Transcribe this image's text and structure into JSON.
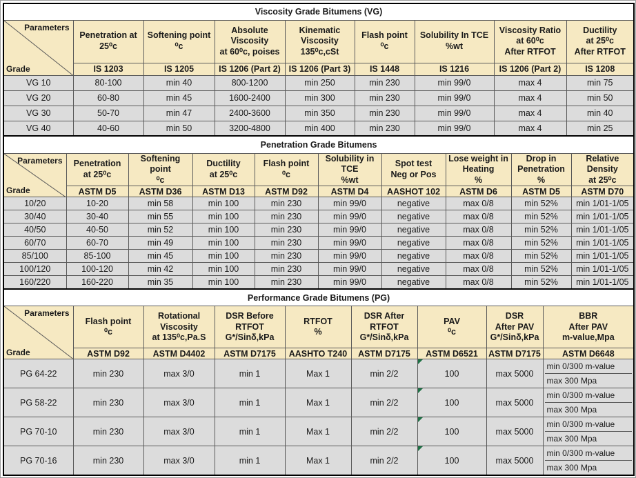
{
  "colors": {
    "header_bg": "#f6e9c2",
    "row_bg": "#dcdcdc",
    "border": "#595959",
    "outer_border": "#000000",
    "flag_green": "#1e7145"
  },
  "tables": [
    {
      "id": "vg",
      "title": "Viscosity Grade Bitumens (VG)",
      "corner": {
        "top_label": "Parameters",
        "bottom_label": "Grade"
      },
      "columns": [
        {
          "label": "Penetration at\n25⁰c",
          "code": "IS 1203"
        },
        {
          "label": "Softening point\n⁰c",
          "code": "IS 1205"
        },
        {
          "label": "Absolute\nViscosity\nat 60⁰c, poises",
          "code": "IS 1206 (Part 2)"
        },
        {
          "label": "Kinematic\nViscosity\n135⁰c,cSt",
          "code": "IS 1206 (Part 3)"
        },
        {
          "label": "Flash point\n⁰c",
          "code": "IS 1448"
        },
        {
          "label": "Solubility In TCE\n%wt",
          "code": "IS 1216"
        },
        {
          "label": "Viscosity Ratio\nat 60⁰c\nAfter RTFOT",
          "code": "IS 1206 (Part 2)"
        },
        {
          "label": "Ductility\nat 25⁰c\nAfter RTFOT",
          "code": "IS 1208"
        }
      ],
      "rows": [
        {
          "grade": "VG 10",
          "values": [
            "80-100",
            "min 40",
            "800-1200",
            "min 250",
            "min 230",
            "min 99/0",
            "max 4",
            "min 75"
          ]
        },
        {
          "grade": "VG 20",
          "values": [
            "60-80",
            "min 45",
            "1600-2400",
            "min 300",
            "min 230",
            "min 99/0",
            "max 4",
            "min 50"
          ]
        },
        {
          "grade": "VG 30",
          "values": [
            "50-70",
            "min 47",
            "2400-3600",
            "min 350",
            "min 230",
            "min 99/0",
            "max 4",
            "min 40"
          ]
        },
        {
          "grade": "VG 40",
          "values": [
            "40-60",
            "min 50",
            "3200-4800",
            "min 400",
            "min 230",
            "min 99/0",
            "max 4",
            "min 25"
          ]
        }
      ]
    },
    {
      "id": "pen",
      "title": "Penetration Grade Bitumens",
      "corner": {
        "top_label": "Parameters",
        "bottom_label": "Grade"
      },
      "columns": [
        {
          "label": "Penetration\nat 25⁰c",
          "code": "ASTM D5"
        },
        {
          "label": "Softening point\n⁰c",
          "code": "ASTM D36"
        },
        {
          "label": "Ductility\nat 25⁰c",
          "code": "ASTM D13"
        },
        {
          "label": "Flash point\n⁰c",
          "code": "ASTM D92"
        },
        {
          "label": "Solubility in TCE\n%wt",
          "code": "ASTM D4"
        },
        {
          "label": "Spot test\nNeg or Pos",
          "code": "AASHOT 102"
        },
        {
          "label": "Lose weight in\nHeating\n%",
          "code": "ASTM D6"
        },
        {
          "label": "Drop in\nPenetration\n%",
          "code": "ASTM D5"
        },
        {
          "label": "Relative Density\nat 25⁰c",
          "code": "ASTM D70"
        }
      ],
      "rows": [
        {
          "grade": "10/20",
          "values": [
            "10-20",
            "min 58",
            "min 100",
            "min 230",
            "min 99/0",
            "negative",
            "max 0/8",
            "min 52%",
            "min 1/01-1/05"
          ]
        },
        {
          "grade": "30/40",
          "values": [
            "30-40",
            "min 55",
            "min 100",
            "min 230",
            "min 99/0",
            "negative",
            "max 0/8",
            "min 52%",
            "min 1/01-1/05"
          ]
        },
        {
          "grade": "40/50",
          "values": [
            "40-50",
            "min 52",
            "min 100",
            "min 230",
            "min 99/0",
            "negative",
            "max 0/8",
            "min 52%",
            "min 1/01-1/05"
          ]
        },
        {
          "grade": "60/70",
          "values": [
            "60-70",
            "min 49",
            "min 100",
            "min 230",
            "min 99/0",
            "negative",
            "max 0/8",
            "min 52%",
            "min 1/01-1/05"
          ]
        },
        {
          "grade": "85/100",
          "values": [
            "85-100",
            "min 45",
            "min 100",
            "min 230",
            "min 99/0",
            "negative",
            "max 0/8",
            "min 52%",
            "min 1/01-1/05"
          ]
        },
        {
          "grade": "100/120",
          "values": [
            "100-120",
            "min 42",
            "min 100",
            "min 230",
            "min 99/0",
            "negative",
            "max 0/8",
            "min 52%",
            "min 1/01-1/05"
          ]
        },
        {
          "grade": "160/220",
          "values": [
            "160-220",
            "min 35",
            "min 100",
            "min 230",
            "min 99/0",
            "negative",
            "max 0/8",
            "min 52%",
            "min 1/01-1/05"
          ]
        }
      ]
    },
    {
      "id": "pg",
      "title": "Performance Grade Bitumens (PG)",
      "corner": {
        "top_label": "Parameters",
        "bottom_label": "Grade"
      },
      "flagged_value_index": 5,
      "columns": [
        {
          "label": "Flash point\n⁰c",
          "code": "ASTM D92"
        },
        {
          "label": "Rotational\nViscosity\nat 135⁰c,Pa.S",
          "code": "ASTM D4402"
        },
        {
          "label": "DSR Before\nRTFOT\nG*/Sinδ,kPa",
          "code": "ASTM D7175"
        },
        {
          "label": "RTFOT\n%",
          "code": "AASHTO T240"
        },
        {
          "label": "DSR After\nRTFOT\nG*/Sinδ,kPa",
          "code": "ASTM D7175"
        },
        {
          "label": "PAV\n⁰c",
          "code": "ASTM D6521"
        },
        {
          "label": "DSR\nAfter PAV\nG*/Sinδ,kPa",
          "code": "ASTM D7175"
        },
        {
          "label": "BBR\nAfter PAV\nm-value,Mpa",
          "code": "ASTM D6648"
        }
      ],
      "rows": [
        {
          "grade": "PG 64-22",
          "values": [
            "min 230",
            "max 3/0",
            "min 1",
            "Max 1",
            "min 2/2",
            "100",
            "max 5000",
            [
              "min 0/300 m-value",
              "max 300 Mpa"
            ]
          ]
        },
        {
          "grade": "PG 58-22",
          "values": [
            "min 230",
            "max 3/0",
            "min 1",
            "Max 1",
            "min 2/2",
            "100",
            "max 5000",
            [
              "min 0/300 m-value",
              "max 300 Mpa"
            ]
          ]
        },
        {
          "grade": "PG 70-10",
          "values": [
            "min 230",
            "max 3/0",
            "min 1",
            "Max 1",
            "min 2/2",
            "100",
            "max 5000",
            [
              "min 0/300 m-value",
              "max 300 Mpa"
            ]
          ]
        },
        {
          "grade": "PG 70-16",
          "values": [
            "min 230",
            "max 3/0",
            "min 1",
            "Max 1",
            "min 2/2",
            "100",
            "max 5000",
            [
              "min 0/300 m-value",
              "max 300 Mpa"
            ]
          ]
        }
      ]
    }
  ]
}
